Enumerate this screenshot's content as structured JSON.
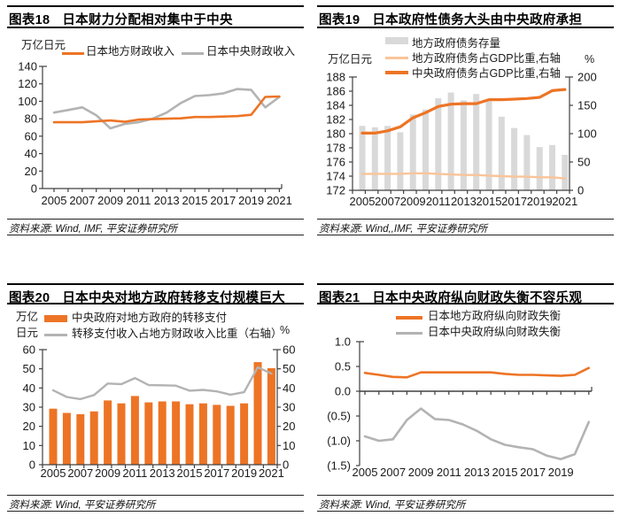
{
  "colors": {
    "orange": "#ED7425",
    "light_orange": "#F9C499",
    "gray": "#B3B3B3",
    "gray_bar": "#D9D9D9",
    "negative_red": "#FF0000",
    "axis": "#404040"
  },
  "chart_data": [
    {
      "figure_label": "图表18",
      "title": "日本财力分配相对集中于中央",
      "type": "line",
      "unit_left": "万亿日元",
      "source": "资料来源: Wind, IMF, 平安证券研究所",
      "x_years": [
        2005,
        2006,
        2007,
        2008,
        2009,
        2010,
        2011,
        2012,
        2013,
        2014,
        2015,
        2016,
        2017,
        2018,
        2019,
        2020,
        2021
      ],
      "x_tick_labels": [
        "2005",
        "2007",
        "2009",
        "2011",
        "2013",
        "2015",
        "2017",
        "2019",
        "2021"
      ],
      "y_left": {
        "min": 0,
        "max": 140,
        "tick_values": [
          0,
          20,
          40,
          60,
          80,
          100,
          120,
          140
        ],
        "tick_labels": [
          "0",
          "20",
          "40",
          "60",
          "80",
          "100",
          "120",
          "140"
        ]
      },
      "series": [
        {
          "name": "日本地方财政收入",
          "type": "line",
          "axis": "left",
          "color": "orange",
          "values": [
            76,
            76,
            76,
            77,
            78,
            76.5,
            79,
            79.5,
            80,
            80.5,
            82,
            82,
            82.5,
            83,
            84.5,
            105,
            105.5
          ]
        },
        {
          "name": "日本中央财政收入",
          "type": "line",
          "axis": "left",
          "color": "gray",
          "values": [
            87,
            90,
            93,
            84,
            69,
            74,
            76,
            80,
            87,
            98,
            106,
            107,
            109,
            114,
            113,
            93,
            105
          ]
        }
      ]
    },
    {
      "figure_label": "图表19",
      "title": "日本政府性债务大头由中央政府承担",
      "type": "bar+line",
      "unit_left": "万亿日元",
      "unit_right": "%",
      "source": "资料来源: Wind,,IMF, 平安证券研究所",
      "x_years": [
        2005,
        2006,
        2007,
        2008,
        2009,
        2010,
        2011,
        2012,
        2013,
        2014,
        2015,
        2016,
        2017,
        2018,
        2019,
        2020,
        2021
      ],
      "x_tick_labels": [
        "2005",
        "2007",
        "2009",
        "2011",
        "2013",
        "2015",
        "2017",
        "2019",
        "2021"
      ],
      "y_left": {
        "min": 172,
        "max": 188,
        "tick_values": [
          172,
          174,
          176,
          178,
          180,
          182,
          184,
          186,
          188
        ],
        "tick_labels": [
          "172",
          "174",
          "176",
          "178",
          "180",
          "182",
          "184",
          "186",
          "188"
        ]
      },
      "y_right": {
        "min": 0,
        "max": 200,
        "tick_values": [
          0,
          50,
          100,
          150,
          200
        ],
        "tick_labels": [
          "0",
          "50",
          "100",
          "150",
          "200"
        ]
      },
      "series": [
        {
          "name": "地方政府债务存量",
          "type": "bar",
          "axis": "left",
          "color": "gray_bar",
          "values": [
            181.1,
            180.9,
            181.1,
            180.2,
            182.7,
            183.4,
            185.0,
            185.8,
            184.7,
            185.6,
            184.6,
            182.4,
            180.8,
            179.8,
            178.1,
            178.4,
            177.0
          ]
        },
        {
          "name": "地方政府债务占GDP比重,右轴",
          "type": "line",
          "axis": "right",
          "color": "light_orange",
          "values": [
            29,
            29,
            29,
            29,
            30,
            30,
            29,
            28,
            27,
            27,
            26,
            25,
            24,
            24,
            23,
            23,
            21
          ]
        },
        {
          "name": "中央政府债务占GDP比重,右轴",
          "type": "line",
          "axis": "right",
          "color": "orange",
          "values": [
            101,
            101,
            105,
            112,
            128,
            137,
            148,
            152,
            153,
            153,
            160,
            160,
            161,
            162,
            164,
            176,
            178
          ]
        }
      ]
    },
    {
      "figure_label": "图表20",
      "title": "日本中央对地方政府转移支付规模巨大",
      "type": "bar+line",
      "unit_left_lines": [
        "万亿",
        "日元"
      ],
      "unit_right": "%",
      "source": "资料来源: Wind, 平安证券研究所",
      "x_years": [
        2005,
        2006,
        2007,
        2008,
        2009,
        2010,
        2011,
        2012,
        2013,
        2014,
        2015,
        2016,
        2017,
        2018,
        2019,
        2020,
        2021
      ],
      "x_tick_labels": [
        "2005",
        "2007",
        "2009",
        "2011",
        "2013",
        "2015",
        "2017",
        "2019",
        "2021"
      ],
      "y_left": {
        "min": 0,
        "max": 60,
        "tick_values": [
          0,
          10,
          20,
          30,
          40,
          50,
          60
        ],
        "tick_labels": [
          "0",
          "10",
          "20",
          "30",
          "40",
          "50",
          "60"
        ]
      },
      "y_right": {
        "min": 0,
        "max": 60,
        "tick_values": [
          0,
          10,
          20,
          30,
          40,
          50,
          60
        ],
        "tick_labels": [
          "0",
          "10",
          "20",
          "30",
          "40",
          "50",
          "60"
        ]
      },
      "series": [
        {
          "name": "中央政府对地方政府的转移支付",
          "type": "bar",
          "axis": "left",
          "color": "orange",
          "values": [
            29.2,
            27,
            26.3,
            27.8,
            33.5,
            32,
            35.8,
            32.5,
            33,
            33,
            31.5,
            32,
            31.2,
            30.7,
            32,
            53.5,
            50.3
          ]
        },
        {
          "name": "转移支付收入占地方财政收入比重（右轴）",
          "type": "line",
          "axis": "right",
          "color": "gray",
          "values": [
            38.8,
            35.3,
            34.2,
            36.3,
            42.3,
            42,
            45.2,
            41.5,
            41.4,
            41.2,
            38.6,
            39,
            38.2,
            36.5,
            37.8,
            50.8,
            47.5
          ]
        }
      ]
    },
    {
      "figure_label": "图表21",
      "title": "日本中央政府纵向财政失衡不容乐观",
      "type": "line",
      "source": "资料来源: Wind, 平安证券研究所",
      "x_years": [
        2005,
        2006,
        2007,
        2008,
        2009,
        2010,
        2011,
        2012,
        2013,
        2014,
        2015,
        2016,
        2017,
        2018,
        2019,
        2020,
        2021
      ],
      "x_tick_labels": [
        "2005",
        "2007",
        "2009",
        "2011",
        "2013",
        "2015",
        "2017",
        "2019"
      ],
      "y_left": {
        "min": -1.5,
        "max": 1.0,
        "tick_values": [
          1.0,
          0.5,
          0.0,
          -0.5,
          -1.0,
          -1.5
        ],
        "tick_labels": [
          "1.0",
          "0.5",
          "0.0",
          "(0.5)",
          "(1.0)",
          "(1.5)"
        ]
      },
      "series": [
        {
          "name": "日本地方政府纵向财政失衡",
          "type": "line",
          "axis": "left",
          "color": "orange",
          "values": [
            0.37,
            0.33,
            0.29,
            0.28,
            0.38,
            0.38,
            0.38,
            0.38,
            0.38,
            0.38,
            0.35,
            0.33,
            0.33,
            0.32,
            0.31,
            0.33,
            0.47
          ]
        },
        {
          "name": "日本中央政府纵向财政失衡",
          "type": "line",
          "axis": "left",
          "color": "gray",
          "values": [
            -0.91,
            -1.0,
            -0.97,
            -0.58,
            -0.35,
            -0.56,
            -0.58,
            -0.67,
            -0.8,
            -0.97,
            -1.08,
            -1.13,
            -1.17,
            -1.3,
            -1.37,
            -1.27,
            -0.62
          ]
        }
      ]
    }
  ]
}
